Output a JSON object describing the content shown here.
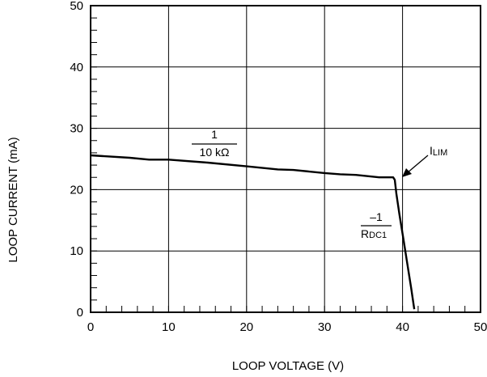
{
  "chart_data": {
    "type": "line",
    "title": "",
    "xlabel": "LOOP VOLTAGE (V)",
    "ylabel": "LOOP CURRENT (mA)",
    "xlim": [
      0,
      50
    ],
    "ylim": [
      0,
      50
    ],
    "grid": true,
    "x_ticks": [
      0,
      10,
      20,
      30,
      40,
      50
    ],
    "y_ticks": [
      0,
      10,
      20,
      30,
      40,
      50
    ],
    "x_tick_labels": [
      "0",
      "10",
      "20",
      "30",
      "40",
      "50"
    ],
    "y_tick_labels": [
      "0",
      "10",
      "20",
      "30",
      "40",
      "50"
    ],
    "x_minor_step": 2,
    "y_minor_step": 2,
    "series": [
      {
        "name": "",
        "x": [
          0,
          5,
          7.5,
          10,
          15,
          20,
          24,
          26,
          30,
          32,
          34,
          37,
          38.8,
          39.0,
          39.2,
          39.6,
          40.1,
          40.6,
          41.1,
          41.5
        ],
        "y": [
          25.6,
          25.2,
          24.9,
          24.9,
          24.4,
          23.8,
          23.3,
          23.2,
          22.7,
          22.5,
          22.4,
          22.0,
          22.0,
          21.6,
          19.4,
          16.0,
          12.0,
          8.0,
          4.0,
          0.5
        ]
      }
    ],
    "annotations": {
      "slope1": {
        "num": "1",
        "den": "10 kΩ"
      },
      "ilim": {
        "main": "I",
        "sub": "LIM"
      },
      "slope2": {
        "num": "–1",
        "den_main": "R",
        "den_sub": "DC1"
      }
    }
  }
}
